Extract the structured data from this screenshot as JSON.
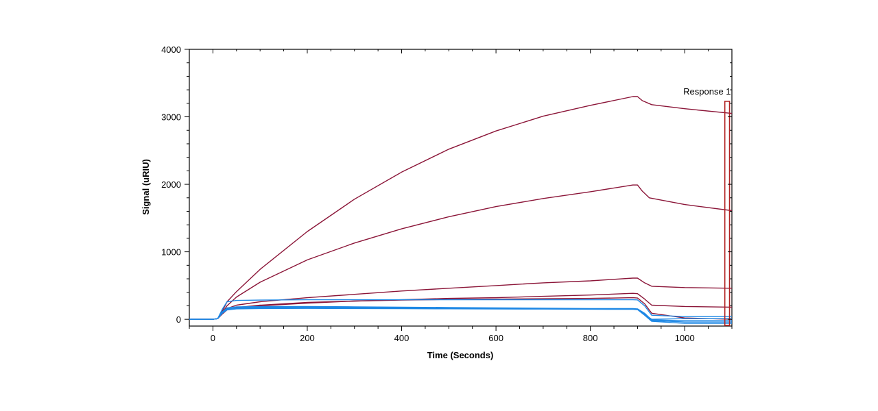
{
  "chart_data": {
    "type": "line",
    "title": "",
    "xlabel": "Time (Seconds)",
    "ylabel": "Signal (uRIU)",
    "xlim": [
      -50,
      1100
    ],
    "ylim": [
      -100,
      4000
    ],
    "x_ticks": [
      0,
      200,
      400,
      600,
      800,
      1000
    ],
    "y_ticks": [
      0,
      1000,
      2000,
      3000,
      4000
    ],
    "grid": false,
    "legend": "none",
    "colors": {
      "dark_series": "#8b1538",
      "light_series": "#1e88e5",
      "annotation": "#b22222"
    },
    "series": [
      {
        "color": "#8b1538",
        "points": [
          [
            -50,
            0
          ],
          [
            0,
            0
          ],
          [
            10,
            10
          ],
          [
            20,
            120
          ],
          [
            30,
            260
          ],
          [
            50,
            410
          ],
          [
            100,
            740
          ],
          [
            200,
            1300
          ],
          [
            300,
            1780
          ],
          [
            400,
            2180
          ],
          [
            500,
            2520
          ],
          [
            600,
            2790
          ],
          [
            700,
            3010
          ],
          [
            800,
            3170
          ],
          [
            890,
            3300
          ],
          [
            900,
            3300
          ],
          [
            910,
            3240
          ],
          [
            930,
            3180
          ],
          [
            1000,
            3120
          ],
          [
            1100,
            3050
          ]
        ]
      },
      {
        "color": "#8b1538",
        "points": [
          [
            -50,
            0
          ],
          [
            0,
            0
          ],
          [
            10,
            10
          ],
          [
            20,
            100
          ],
          [
            30,
            200
          ],
          [
            50,
            330
          ],
          [
            100,
            550
          ],
          [
            200,
            880
          ],
          [
            300,
            1130
          ],
          [
            400,
            1340
          ],
          [
            500,
            1520
          ],
          [
            600,
            1670
          ],
          [
            700,
            1790
          ],
          [
            800,
            1890
          ],
          [
            890,
            1990
          ],
          [
            900,
            1990
          ],
          [
            910,
            1900
          ],
          [
            925,
            1800
          ],
          [
            1000,
            1700
          ],
          [
            1100,
            1610
          ]
        ]
      },
      {
        "color": "#8b1538",
        "points": [
          [
            -50,
            0
          ],
          [
            0,
            0
          ],
          [
            10,
            10
          ],
          [
            20,
            90
          ],
          [
            30,
            160
          ],
          [
            50,
            210
          ],
          [
            100,
            260
          ],
          [
            200,
            320
          ],
          [
            300,
            370
          ],
          [
            400,
            420
          ],
          [
            500,
            460
          ],
          [
            600,
            500
          ],
          [
            700,
            540
          ],
          [
            800,
            570
          ],
          [
            890,
            610
          ],
          [
            900,
            610
          ],
          [
            915,
            540
          ],
          [
            930,
            490
          ],
          [
            1000,
            470
          ],
          [
            1100,
            460
          ]
        ]
      },
      {
        "color": "#8b1538",
        "points": [
          [
            -50,
            0
          ],
          [
            0,
            0
          ],
          [
            10,
            10
          ],
          [
            20,
            80
          ],
          [
            30,
            140
          ],
          [
            50,
            170
          ],
          [
            100,
            200
          ],
          [
            200,
            240
          ],
          [
            300,
            270
          ],
          [
            400,
            290
          ],
          [
            500,
            310
          ],
          [
            600,
            320
          ],
          [
            700,
            340
          ],
          [
            800,
            360
          ],
          [
            890,
            385
          ],
          [
            900,
            380
          ],
          [
            915,
            300
          ],
          [
            930,
            210
          ],
          [
            1000,
            190
          ],
          [
            1100,
            180
          ]
        ]
      },
      {
        "color": "#8b1538",
        "points": [
          [
            -50,
            0
          ],
          [
            0,
            0
          ],
          [
            10,
            10
          ],
          [
            20,
            80
          ],
          [
            30,
            140
          ],
          [
            50,
            175
          ],
          [
            100,
            210
          ],
          [
            200,
            250
          ],
          [
            300,
            270
          ],
          [
            400,
            285
          ],
          [
            500,
            295
          ],
          [
            600,
            300
          ],
          [
            700,
            305
          ],
          [
            800,
            310
          ],
          [
            890,
            320
          ],
          [
            900,
            315
          ],
          [
            915,
            230
          ],
          [
            930,
            90
          ],
          [
            1000,
            20
          ],
          [
            1100,
            0
          ]
        ]
      },
      {
        "color": "#1e88e5",
        "points": [
          [
            -50,
            0
          ],
          [
            0,
            0
          ],
          [
            10,
            10
          ],
          [
            20,
            150
          ],
          [
            30,
            260
          ],
          [
            50,
            280
          ],
          [
            100,
            285
          ],
          [
            200,
            290
          ],
          [
            300,
            290
          ],
          [
            400,
            290
          ],
          [
            500,
            290
          ],
          [
            600,
            290
          ],
          [
            700,
            290
          ],
          [
            800,
            290
          ],
          [
            890,
            290
          ],
          [
            900,
            288
          ],
          [
            915,
            200
          ],
          [
            930,
            60
          ],
          [
            1000,
            40
          ],
          [
            1100,
            40
          ]
        ]
      },
      {
        "color": "#1e88e5",
        "points": [
          [
            -50,
            0
          ],
          [
            0,
            0
          ],
          [
            10,
            10
          ],
          [
            20,
            110
          ],
          [
            30,
            170
          ],
          [
            50,
            185
          ],
          [
            100,
            190
          ],
          [
            200,
            190
          ],
          [
            300,
            185
          ],
          [
            400,
            180
          ],
          [
            500,
            175
          ],
          [
            600,
            170
          ],
          [
            700,
            165
          ],
          [
            800,
            160
          ],
          [
            890,
            160
          ],
          [
            900,
            155
          ],
          [
            915,
            90
          ],
          [
            930,
            -10
          ],
          [
            1000,
            -20
          ],
          [
            1100,
            -20
          ]
        ]
      },
      {
        "color": "#1e88e5",
        "points": [
          [
            -50,
            0
          ],
          [
            0,
            0
          ],
          [
            10,
            10
          ],
          [
            20,
            100
          ],
          [
            30,
            155
          ],
          [
            50,
            170
          ],
          [
            100,
            180
          ],
          [
            200,
            180
          ],
          [
            300,
            175
          ],
          [
            400,
            170
          ],
          [
            500,
            165
          ],
          [
            600,
            160
          ],
          [
            700,
            158
          ],
          [
            800,
            155
          ],
          [
            890,
            152
          ],
          [
            900,
            148
          ],
          [
            915,
            80
          ],
          [
            930,
            -20
          ],
          [
            1000,
            -40
          ],
          [
            1100,
            -40
          ]
        ]
      },
      {
        "color": "#1e88e5",
        "points": [
          [
            -50,
            0
          ],
          [
            0,
            0
          ],
          [
            10,
            10
          ],
          [
            20,
            95
          ],
          [
            30,
            150
          ],
          [
            50,
            165
          ],
          [
            100,
            170
          ],
          [
            200,
            172
          ],
          [
            300,
            168
          ],
          [
            400,
            165
          ],
          [
            500,
            162
          ],
          [
            600,
            160
          ],
          [
            700,
            158
          ],
          [
            800,
            156
          ],
          [
            890,
            154
          ],
          [
            900,
            150
          ],
          [
            915,
            70
          ],
          [
            930,
            0
          ],
          [
            1000,
            10
          ],
          [
            1100,
            10
          ]
        ]
      },
      {
        "color": "#1e88e5",
        "points": [
          [
            -50,
            0
          ],
          [
            0,
            0
          ],
          [
            10,
            10
          ],
          [
            20,
            90
          ],
          [
            30,
            140
          ],
          [
            50,
            155
          ],
          [
            100,
            160
          ],
          [
            200,
            162
          ],
          [
            300,
            160
          ],
          [
            400,
            158
          ],
          [
            500,
            156
          ],
          [
            600,
            154
          ],
          [
            700,
            152
          ],
          [
            800,
            150
          ],
          [
            890,
            148
          ],
          [
            900,
            144
          ],
          [
            915,
            60
          ],
          [
            930,
            -30
          ],
          [
            1000,
            -60
          ],
          [
            1100,
            -60
          ]
        ]
      }
    ],
    "annotations": [
      {
        "label": "Response 1",
        "x_start": 1085,
        "x_end": 1095,
        "y_bottom": -90,
        "y_top": 3230
      }
    ]
  }
}
